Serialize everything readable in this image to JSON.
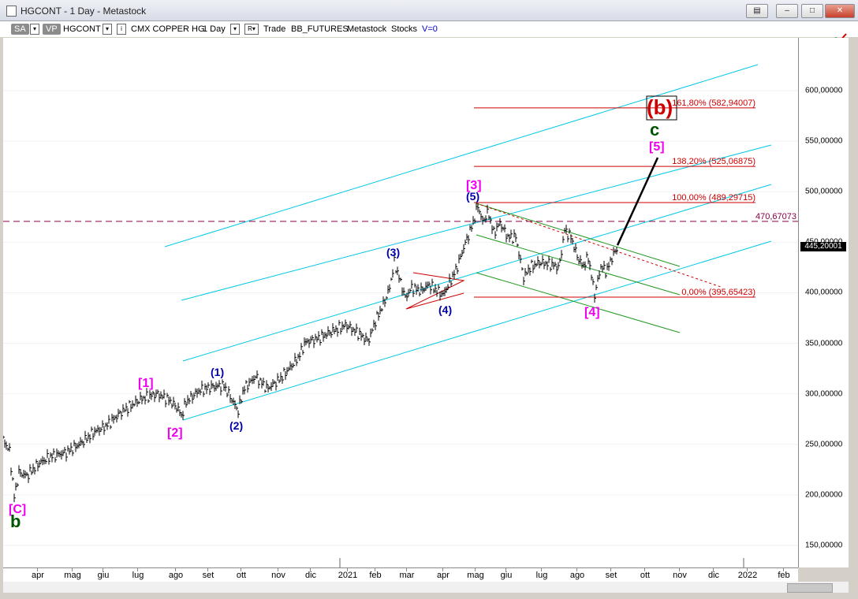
{
  "window": {
    "title": "HGCONT - 1 Day - Metastock"
  },
  "toolbar": {
    "sa": "SA",
    "vp": "VP",
    "symbol": "HGCONT",
    "name": "CMX COPPER HG",
    "period": "1 Day",
    "r": "R",
    "mode": "Trade",
    "source": "BB_FUTURES",
    "app": "Metastock",
    "type": "Stocks",
    "vol": "V=0"
  },
  "colors": {
    "channel": "#00c8e8",
    "fib": "#cc0000",
    "green": "#229922",
    "magenta": "#ee00ee",
    "navy": "#0000aa",
    "darkgreen": "#005500"
  },
  "chart_data": {
    "type": "ohlc",
    "y_ticks": [
      "150,00000",
      "200,00000",
      "250,00000",
      "300,00000",
      "350,00000",
      "400,00000",
      "450,00000",
      "500,00000",
      "550,00000",
      "600,00000"
    ],
    "y_tick_values": [
      150,
      200,
      250,
      300,
      350,
      400,
      450,
      500,
      550,
      600
    ],
    "ylim": [
      125,
      635
    ],
    "x_ticks": [
      "apr",
      "mag",
      "giu",
      "lug",
      "ago",
      "set",
      "ott",
      "nov",
      "dic",
      "2021",
      "feb",
      "mar",
      "apr",
      "mag",
      "giu",
      "lug",
      "ago",
      "set",
      "ott",
      "nov",
      "dic",
      "2022",
      "feb"
    ],
    "last_price": "445,20001",
    "price_path": [
      [
        0,
        255
      ],
      [
        8,
        243
      ],
      [
        14,
        198
      ],
      [
        20,
        222
      ],
      [
        30,
        219
      ],
      [
        45,
        231
      ],
      [
        60,
        238
      ],
      [
        80,
        242
      ],
      [
        100,
        252
      ],
      [
        115,
        262
      ],
      [
        130,
        268
      ],
      [
        150,
        282
      ],
      [
        175,
        295
      ],
      [
        195,
        300
      ],
      [
        210,
        294
      ],
      [
        222,
        285
      ],
      [
        226,
        278
      ],
      [
        232,
        292
      ],
      [
        248,
        303
      ],
      [
        265,
        307
      ],
      [
        280,
        308
      ],
      [
        298,
        283
      ],
      [
        305,
        305
      ],
      [
        320,
        317
      ],
      [
        335,
        305
      ],
      [
        350,
        314
      ],
      [
        365,
        327
      ],
      [
        375,
        337
      ],
      [
        383,
        351
      ],
      [
        400,
        355
      ],
      [
        420,
        363
      ],
      [
        435,
        368
      ],
      [
        450,
        360
      ],
      [
        463,
        352
      ],
      [
        472,
        372
      ],
      [
        484,
        392
      ],
      [
        490,
        405
      ],
      [
        496,
        430
      ],
      [
        502,
        415
      ],
      [
        510,
        395
      ],
      [
        518,
        405
      ],
      [
        530,
        402
      ],
      [
        540,
        408
      ],
      [
        550,
        402
      ],
      [
        558,
        398
      ],
      [
        566,
        410
      ],
      [
        575,
        424
      ],
      [
        585,
        447
      ],
      [
        595,
        467
      ],
      [
        602,
        486
      ],
      [
        608,
        470
      ],
      [
        615,
        480
      ],
      [
        622,
        459
      ],
      [
        630,
        469
      ],
      [
        640,
        455
      ],
      [
        650,
        455
      ],
      [
        660,
        415
      ],
      [
        668,
        425
      ],
      [
        680,
        430
      ],
      [
        695,
        428
      ],
      [
        705,
        425
      ],
      [
        712,
        462
      ],
      [
        720,
        455
      ],
      [
        728,
        436
      ],
      [
        735,
        426
      ],
      [
        742,
        435
      ],
      [
        750,
        398
      ],
      [
        758,
        426
      ],
      [
        765,
        421
      ],
      [
        772,
        435
      ],
      [
        779,
        445
      ]
    ],
    "horizontal_lines": [
      {
        "label": "161,80% (582,94007)",
        "value": 582.94,
        "color": "#cc0000"
      },
      {
        "label": "138,20% (525,06875)",
        "value": 525.07,
        "color": "#cc0000"
      },
      {
        "label": "100,00% (489,29715)",
        "value": 489.3,
        "color": "#cc0000"
      },
      {
        "label": "0,00% (395,65423)",
        "value": 395.65,
        "color": "#cc0000"
      },
      {
        "label": "470,67073",
        "value": 470.67,
        "color": "#880044",
        "style": "dashed"
      }
    ],
    "wave_labels": [
      {
        "text": "[C]",
        "color": "#ee00ee"
      },
      {
        "text": "b",
        "color": "#005500"
      },
      {
        "text": "[1]",
        "color": "#ee00ee"
      },
      {
        "text": "[2]",
        "color": "#ee00ee"
      },
      {
        "text": "(1)",
        "color": "#0000aa"
      },
      {
        "text": "(2)",
        "color": "#0000aa"
      },
      {
        "text": "(3)",
        "color": "#0000aa"
      },
      {
        "text": "(4)",
        "color": "#0000aa"
      },
      {
        "text": "(5)",
        "color": "#0000aa"
      },
      {
        "text": "[3]",
        "color": "#ee00ee"
      },
      {
        "text": "[4]",
        "color": "#ee00ee"
      },
      {
        "text": "[5]",
        "color": "#ee00ee"
      },
      {
        "text": "c",
        "color": "#005500"
      },
      {
        "text": "(b)",
        "color": "#cc0000"
      }
    ]
  }
}
